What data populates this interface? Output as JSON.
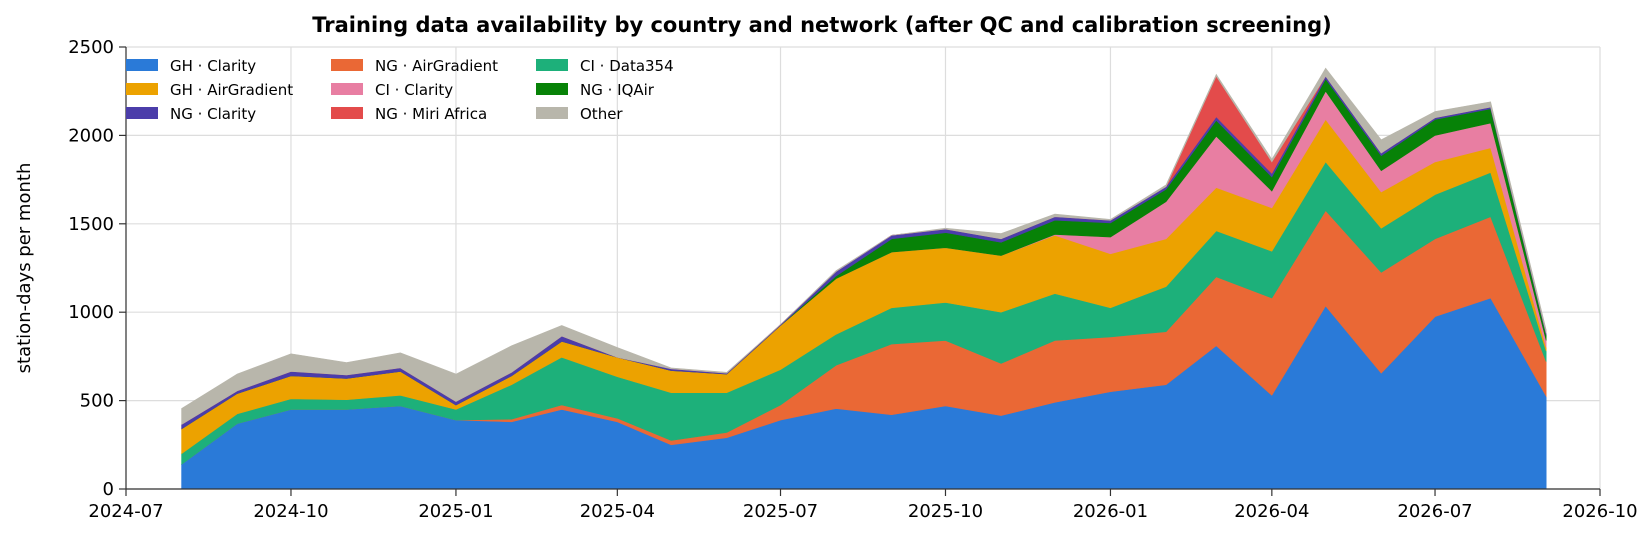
{
  "chart_data": {
    "type": "area",
    "stacked": true,
    "title": "Training data availability by country and network (after QC and calibration screening)",
    "xlabel": "",
    "ylabel": "station-days per month",
    "ylim": [
      0,
      2500
    ],
    "xlim": [
      "2024-07-01",
      "2026-10-01"
    ],
    "grid": true,
    "legend_position": "top-left",
    "y_ticks": [
      "0",
      "500",
      "1000",
      "1500",
      "2000",
      "2500"
    ],
    "x_ticks": [
      {
        "date": "2024-07-01",
        "label": "2024-07"
      },
      {
        "date": "2024-10-01",
        "label": "2024-10"
      },
      {
        "date": "2025-01-01",
        "label": "2025-01"
      },
      {
        "date": "2025-04-01",
        "label": "2025-04"
      },
      {
        "date": "2025-07-01",
        "label": "2025-07"
      },
      {
        "date": "2025-10-01",
        "label": "2025-10"
      },
      {
        "date": "2026-01-01",
        "label": "2026-01"
      },
      {
        "date": "2026-04-01",
        "label": "2026-04"
      },
      {
        "date": "2026-07-01",
        "label": "2026-07"
      },
      {
        "date": "2026-10-01",
        "label": "2026-10"
      }
    ],
    "x": [
      "2024-08-01",
      "2024-09-01",
      "2024-10-01",
      "2024-11-01",
      "2024-12-01",
      "2025-01-01",
      "2025-02-01",
      "2025-03-01",
      "2025-04-01",
      "2025-05-01",
      "2025-06-01",
      "2025-07-01",
      "2025-08-01",
      "2025-09-01",
      "2025-10-01",
      "2025-11-01",
      "2025-12-01",
      "2026-01-01",
      "2026-02-01",
      "2026-03-01",
      "2026-04-01",
      "2026-05-01",
      "2026-06-01",
      "2026-07-01",
      "2026-08-01",
      "2026-09-01"
    ],
    "series": [
      {
        "name": "GH · Clarity",
        "color": "#2a7ad8",
        "values": [
          140,
          370,
          450,
          450,
          470,
          390,
          380,
          450,
          380,
          250,
          290,
          390,
          455,
          420,
          470,
          415,
          490,
          550,
          590,
          810,
          530,
          1035,
          655,
          975,
          1080,
          525
        ]
      },
      {
        "name": "NG · AirGradient",
        "color": "#ea6835",
        "values": [
          0,
          0,
          0,
          0,
          0,
          0,
          15,
          25,
          20,
          25,
          30,
          85,
          245,
          400,
          370,
          295,
          350,
          310,
          300,
          390,
          550,
          540,
          570,
          440,
          460,
          195
        ]
      },
      {
        "name": "CI · Data354",
        "color": "#1db07a",
        "values": [
          60,
          55,
          60,
          55,
          60,
          60,
          195,
          270,
          235,
          270,
          225,
          200,
          175,
          205,
          215,
          290,
          265,
          165,
          255,
          260,
          265,
          275,
          250,
          250,
          250,
          60
        ]
      },
      {
        "name": "GH · AirGradient",
        "color": "#eca200",
        "values": [
          140,
          115,
          130,
          120,
          135,
          25,
          50,
          90,
          110,
          125,
          105,
          250,
          315,
          315,
          310,
          320,
          330,
          305,
          270,
          245,
          245,
          240,
          205,
          185,
          140,
          20
        ]
      },
      {
        "name": "CI · Clarity",
        "color": "#e87ea2",
        "values": [
          0,
          0,
          0,
          0,
          0,
          0,
          0,
          0,
          0,
          0,
          0,
          0,
          0,
          0,
          0,
          0,
          5,
          95,
          210,
          290,
          95,
          160,
          120,
          150,
          140,
          40
        ]
      },
      {
        "name": "NG · IQAir",
        "color": "#078207",
        "values": [
          0,
          0,
          0,
          0,
          0,
          0,
          0,
          0,
          0,
          0,
          0,
          0,
          15,
          75,
          85,
          75,
          80,
          80,
          70,
          90,
          80,
          70,
          85,
          90,
          80,
          30
        ]
      },
      {
        "name": "NG · Clarity",
        "color": "#4b3daa",
        "values": [
          25,
          15,
          25,
          20,
          20,
          20,
          20,
          30,
          0,
          10,
          5,
          5,
          25,
          20,
          20,
          20,
          20,
          15,
          15,
          20,
          20,
          15,
          15,
          10,
          10,
          10
        ]
      },
      {
        "name": "NG · Miri Africa",
        "color": "#e34b4b",
        "values": [
          0,
          0,
          0,
          0,
          0,
          0,
          0,
          0,
          0,
          0,
          0,
          0,
          0,
          0,
          0,
          0,
          0,
          0,
          0,
          230,
          65,
          0,
          0,
          0,
          0,
          0
        ]
      },
      {
        "name": "Other",
        "color": "#b8b6ab",
        "values": [
          90,
          95,
          100,
          70,
          85,
          155,
          150,
          60,
          55,
          5,
          5,
          0,
          5,
          0,
          5,
          30,
          15,
          5,
          10,
          10,
          15,
          45,
          75,
          35,
          30,
          20
        ]
      }
    ]
  }
}
